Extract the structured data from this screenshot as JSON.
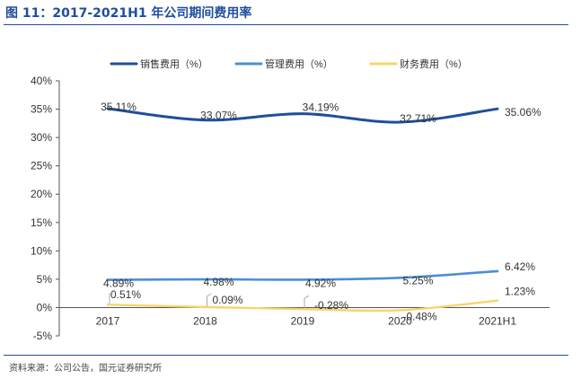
{
  "figure": {
    "title": "图 11：2017-2021H1 年公司期间费用率",
    "source": "资料来源：公司公告，国元证券研究所"
  },
  "chart_data": {
    "type": "line",
    "title": "2017-2021H1 年公司期间费用率",
    "categories": [
      "2017",
      "2018",
      "2019",
      "2020",
      "2021H1"
    ],
    "ylim": [
      -5,
      40
    ],
    "yticks": [
      -5,
      0,
      5,
      10,
      15,
      20,
      25,
      30,
      35,
      40
    ],
    "ytick_labels": [
      "-5%",
      "0%",
      "5%",
      "10%",
      "15%",
      "20%",
      "25%",
      "30%",
      "35%",
      "40%"
    ],
    "grid": false,
    "legend_position": "top",
    "series": [
      {
        "name": "销售费用（%）",
        "color": "#1f4e9c",
        "values": [
          35.11,
          33.07,
          34.19,
          32.71,
          35.06
        ],
        "labels": [
          "35.11%",
          "33.07%",
          "34.19%",
          "32.71%",
          "35.06%"
        ]
      },
      {
        "name": "管理费用（%）",
        "color": "#4a8fd4",
        "values": [
          4.89,
          4.98,
          4.92,
          5.25,
          6.42
        ],
        "labels": [
          "4.89%",
          "4.98%",
          "4.92%",
          "5.25%",
          "6.42%"
        ]
      },
      {
        "name": "财务费用（%）",
        "color": "#f7d46a",
        "values": [
          0.51,
          0.09,
          -0.28,
          -0.48,
          1.23
        ],
        "labels": [
          "0.51%",
          "0.09%",
          "-0.28%",
          "-0.48%",
          "1.23%"
        ]
      }
    ]
  }
}
